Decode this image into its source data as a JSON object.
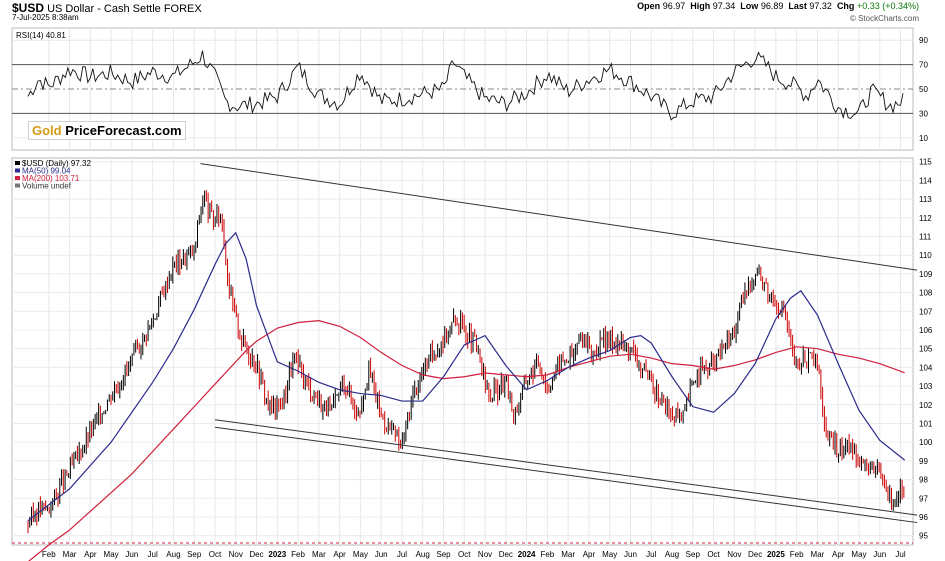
{
  "header": {
    "symbol": "$USD",
    "name": "US Dollar - Cash Settle FOREX",
    "date": "7-Jul-2025 8:38am",
    "open_label": "Open",
    "open": "96.97",
    "high_label": "High",
    "high": "97.34",
    "low_label": "Low",
    "low": "96.89",
    "last_label": "Last",
    "last": "97.32",
    "chg_label": "Chg",
    "chg": "+0.33 (+0.34%)",
    "credit": "© StockCharts.com"
  },
  "brand": {
    "gold": "Gold",
    "rest": "PriceForecast.com"
  },
  "rsi_panel": {
    "label": "RSI(14) 40.81",
    "ticks": [
      90,
      70,
      50,
      30,
      10
    ],
    "overbought": 70,
    "oversold": 30
  },
  "legend": {
    "price": "$USD (Daily) 97.32",
    "ma50": "MA(50) 99.04",
    "ma200": "MA(200) 103.71",
    "volume": "Volume undef"
  },
  "colors": {
    "ma50": "#2b2b8c",
    "ma200": "#d11f3c",
    "up": "#000000",
    "down": "#cc0000",
    "accent": "#d49a12"
  },
  "chart_data": {
    "type": "line",
    "ylim": [
      94.5,
      115.2
    ],
    "y_ticks": [
      95,
      96,
      97,
      98,
      99,
      100,
      101,
      102,
      103,
      104,
      105,
      106,
      107,
      108,
      109,
      110,
      111,
      112,
      113,
      114,
      115
    ],
    "x_ticks": [
      "Feb",
      "Mar",
      "Apr",
      "May",
      "Jun",
      "Jul",
      "Aug",
      "Sep",
      "Oct",
      "Nov",
      "Dec",
      "2023",
      "Feb",
      "Mar",
      "Apr",
      "May",
      "Jun",
      "Jul",
      "Aug",
      "Sep",
      "Oct",
      "Nov",
      "Dec",
      "2024",
      "Feb",
      "Mar",
      "Apr",
      "May",
      "Jun",
      "Jul",
      "Aug",
      "Sep",
      "Oct",
      "Nov",
      "Dec",
      "2025",
      "Feb",
      "Mar",
      "Apr",
      "May",
      "Jun",
      "Jul"
    ],
    "bold_ticks": [
      "2023",
      "2024",
      "2025"
    ],
    "close_series": {
      "name": "$USD",
      "t": [
        0,
        0.5,
        1,
        2,
        3,
        4,
        5,
        6,
        7,
        8,
        8.4,
        8.9,
        9.3,
        9.7,
        10.3,
        11,
        11.6,
        12.2,
        12.8,
        13.4,
        14,
        14.6,
        15.2,
        15.9,
        16.4,
        17,
        17.5,
        18,
        18.5,
        19.2,
        20.1,
        20.6,
        21,
        21.5,
        22.2,
        23,
        23.4,
        24,
        24.6,
        25,
        25.6,
        26.2,
        26.7,
        27.1,
        27.6,
        28.2,
        29,
        29.6,
        30.2,
        31,
        31.5,
        32.1,
        33,
        34,
        34.6,
        35.1,
        35.6,
        36,
        36.4,
        37,
        37.3,
        38,
        38.4,
        39,
        39.5,
        40,
        40.6,
        41,
        41.5,
        42.2
      ],
      "values": [
        95.7,
        96.4,
        96.5,
        98.5,
        100.5,
        102.6,
        104.3,
        106.5,
        109.5,
        110.2,
        113.2,
        111.8,
        112.2,
        108,
        105.4,
        104.2,
        101.8,
        102,
        104.5,
        103.2,
        102.2,
        101.6,
        103.3,
        101.5,
        103.9,
        101.4,
        100.6,
        99.8,
        102.4,
        104.3,
        105.7,
        106.7,
        106,
        105.3,
        102.4,
        103.2,
        101.4,
        103.4,
        104.3,
        102.9,
        104.3,
        104.6,
        105.8,
        104.6,
        105.3,
        105.5,
        105,
        103.8,
        102.7,
        101.4,
        101.2,
        103.6,
        104.2,
        106,
        108.2,
        109.2,
        108.1,
        107.6,
        107,
        103.7,
        104.6,
        104.2,
        100.5,
        99.5,
        99.9,
        99.2,
        98.5,
        98.3,
        97.0,
        97.32
      ]
    },
    "ma50_series": {
      "name": "MA(50) 99.04",
      "t": [
        0,
        2,
        4,
        6,
        7,
        8,
        9,
        9.5,
        10,
        10.5,
        11,
        12,
        13,
        14,
        15,
        16,
        17,
        18,
        19,
        20,
        21,
        22,
        23,
        24,
        25,
        26,
        27,
        28,
        29,
        29.5,
        30,
        31,
        32,
        33,
        34,
        35,
        36,
        36.7,
        37.2,
        38,
        39,
        40,
        41,
        42.2
      ],
      "values": [
        95.8,
        97.5,
        100,
        103.2,
        105,
        107.1,
        109.5,
        110.6,
        111.2,
        109.8,
        107.3,
        104.3,
        103.8,
        103.2,
        102.8,
        102.6,
        102.5,
        102.2,
        102.2,
        103.5,
        105.2,
        105.7,
        104.1,
        102.8,
        103.3,
        104,
        104.5,
        104.9,
        105.6,
        105.7,
        105.3,
        103.5,
        101.9,
        101.6,
        102.6,
        104.2,
        106.6,
        107.7,
        108.1,
        106.8,
        104.2,
        101.7,
        100.1,
        99.04
      ]
    },
    "ma200_series": {
      "name": "MA(200) 103.71",
      "t": [
        0,
        1,
        2,
        3,
        4,
        5,
        6,
        7,
        8,
        9,
        10,
        10.5,
        11,
        12,
        13,
        14,
        15,
        16,
        17,
        18,
        19,
        20,
        21,
        22,
        23,
        24,
        25,
        26,
        27,
        28,
        29,
        30,
        31,
        32,
        33,
        34,
        35,
        36,
        37,
        38,
        39,
        40,
        41,
        42.2
      ],
      "values": [
        93.6,
        94.5,
        95.3,
        96.3,
        97.3,
        98.3,
        99.5,
        100.7,
        101.9,
        103.1,
        104.3,
        104.9,
        105.4,
        106.1,
        106.4,
        106.5,
        106.2,
        105.6,
        104.8,
        104.1,
        103.6,
        103.4,
        103.5,
        103.7,
        103.6,
        103.5,
        103.6,
        104,
        104.3,
        104.6,
        104.7,
        104.5,
        104.2,
        104.1,
        103.9,
        104.1,
        104.4,
        104.8,
        105.1,
        105,
        104.7,
        104.5,
        104.2,
        103.71
      ]
    },
    "rsi_series": {
      "name": "RSI(14) 40.81",
      "t": [
        0,
        0.5,
        1,
        2,
        3,
        4,
        5,
        6,
        7,
        8,
        8.4,
        9,
        9.5,
        10,
        11,
        12,
        13,
        14,
        15,
        16,
        17,
        18,
        19,
        20,
        20.5,
        21,
        22,
        23,
        24,
        25,
        26,
        27,
        28,
        29,
        30,
        31,
        32,
        33,
        34,
        35,
        35.5,
        36,
        37,
        37.5,
        38,
        39,
        39.5,
        40,
        40.6,
        41,
        41.5,
        42.2
      ],
      "values": [
        44,
        58,
        52,
        66,
        60,
        63,
        56,
        64,
        60,
        72,
        78,
        60,
        40,
        36,
        38,
        44,
        68,
        45,
        38,
        64,
        40,
        42,
        46,
        50,
        72,
        60,
        42,
        38,
        47,
        62,
        48,
        58,
        66,
        56,
        44,
        30,
        40,
        44,
        64,
        76,
        70,
        60,
        52,
        44,
        58,
        35,
        32,
        30,
        48,
        44,
        36,
        40.81
      ]
    },
    "trend_lines": [
      {
        "name": "upper-resistance",
        "t": [
          8.3,
          42.8
        ],
        "values": [
          114.9,
          109.2
        ]
      },
      {
        "name": "lower-channel-1",
        "t": [
          9,
          42.8
        ],
        "values": [
          101.2,
          96.1
        ]
      },
      {
        "name": "lower-channel-2",
        "t": [
          9,
          42.8
        ],
        "values": [
          100.8,
          95.7
        ]
      }
    ]
  }
}
